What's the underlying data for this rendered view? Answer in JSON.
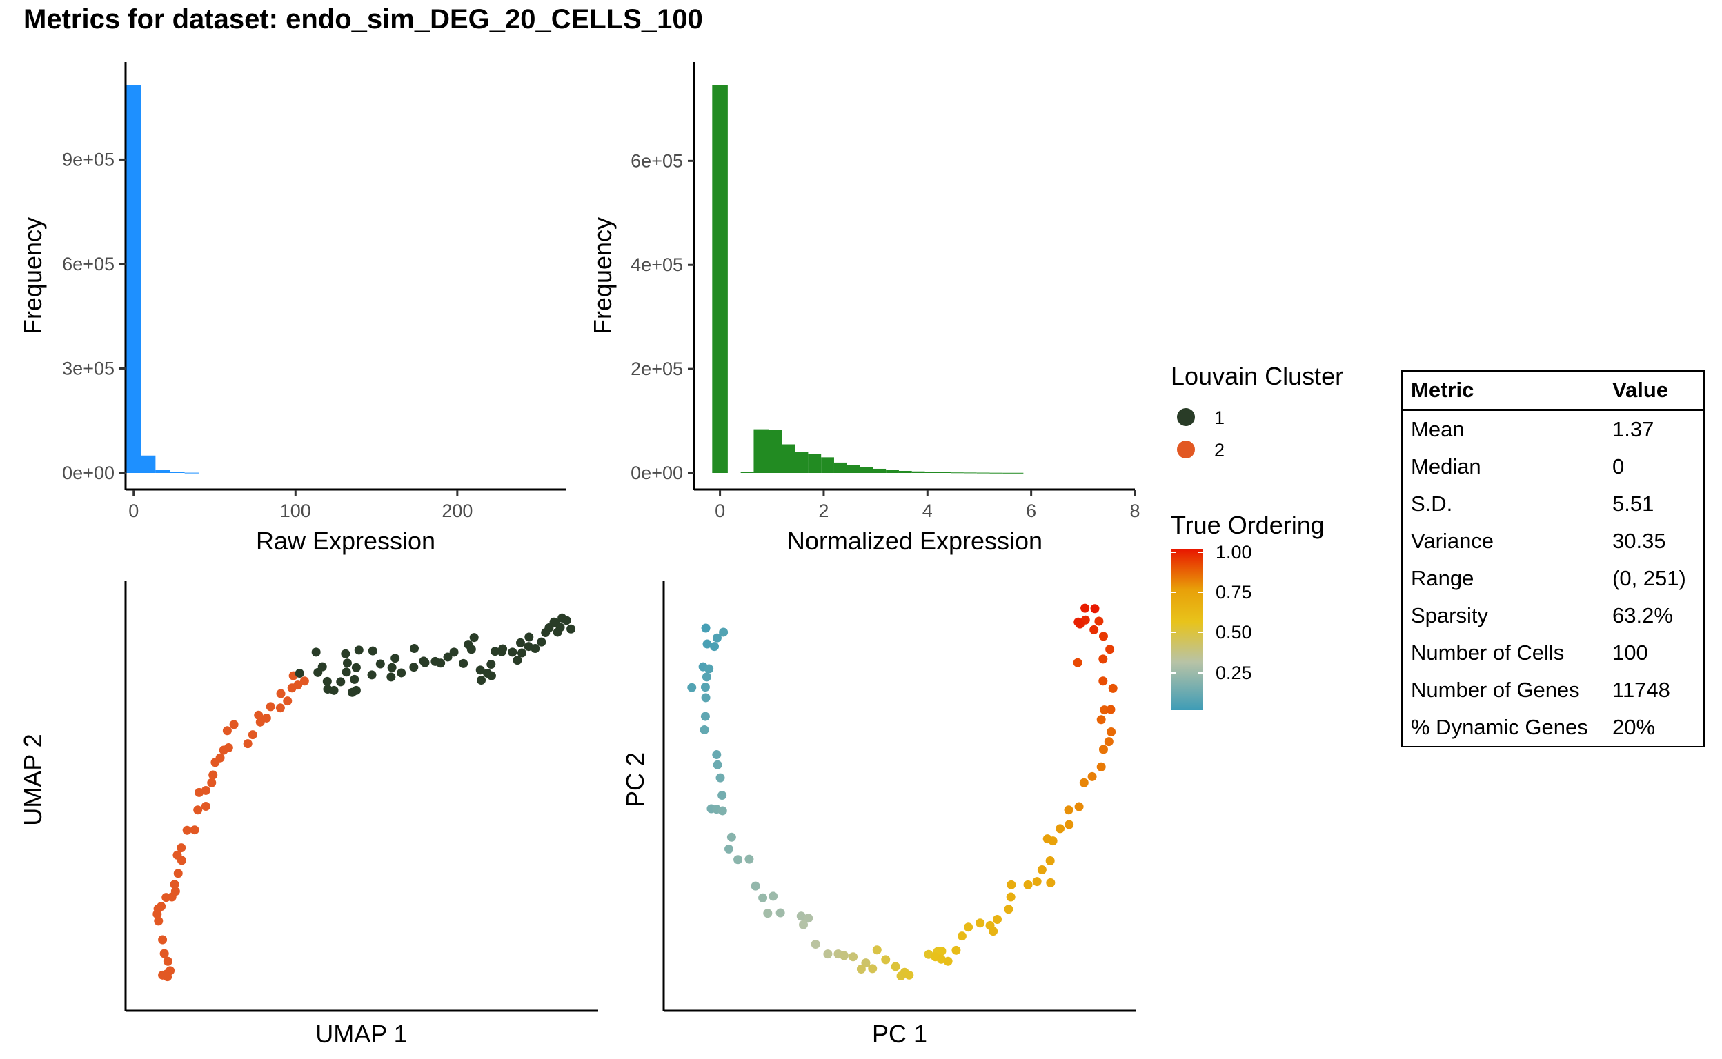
{
  "title": "Metrics for dataset: endo_sim_DEG_20_CELLS_100",
  "chart_data": [
    {
      "type": "bar",
      "name": "raw-expression-histogram",
      "color": "#1E90FF",
      "xlabel": "Raw Expression",
      "ylabel": "Frequency",
      "xticks": [
        "0",
        "100",
        "200"
      ],
      "yticks": [
        "0e+00",
        "3e+05",
        "6e+05",
        "9e+05"
      ],
      "xlim": [
        -5,
        267
      ],
      "ylim": [
        0,
        1180000
      ],
      "bins": [
        {
          "x0": -4.5,
          "x1": 4.5,
          "y": 1113000
        },
        {
          "x0": 4.5,
          "x1": 13.5,
          "y": 50000
        },
        {
          "x0": 13.5,
          "x1": 22.5,
          "y": 9000
        },
        {
          "x0": 22.5,
          "x1": 31.5,
          "y": 2500
        },
        {
          "x0": 31.5,
          "x1": 40.5,
          "y": 800
        }
      ]
    },
    {
      "type": "bar",
      "name": "normalized-expression-histogram",
      "color": "#228B22",
      "xlabel": "Normalized Expression",
      "ylabel": "Frequency",
      "xticks": [
        "0",
        "2",
        "4",
        "6",
        "8"
      ],
      "yticks": [
        "0e+00",
        "2e+05",
        "4e+05",
        "6e+05"
      ],
      "xlim": [
        -0.5,
        8
      ],
      "ylim": [
        0,
        790000
      ],
      "bins": [
        {
          "x0": -0.15,
          "x1": 0.15,
          "y": 745000
        },
        {
          "x0": 0.4,
          "x1": 0.65,
          "y": 2000
        },
        {
          "x0": 0.65,
          "x1": 0.95,
          "y": 84000
        },
        {
          "x0": 0.95,
          "x1": 1.2,
          "y": 83000
        },
        {
          "x0": 1.2,
          "x1": 1.45,
          "y": 55000
        },
        {
          "x0": 1.45,
          "x1": 1.7,
          "y": 41000
        },
        {
          "x0": 1.7,
          "x1": 1.95,
          "y": 37000
        },
        {
          "x0": 1.95,
          "x1": 2.2,
          "y": 30000
        },
        {
          "x0": 2.2,
          "x1": 2.45,
          "y": 20000
        },
        {
          "x0": 2.45,
          "x1": 2.7,
          "y": 15000
        },
        {
          "x0": 2.7,
          "x1": 2.95,
          "y": 11000
        },
        {
          "x0": 2.95,
          "x1": 3.2,
          "y": 8000
        },
        {
          "x0": 3.2,
          "x1": 3.45,
          "y": 6000
        },
        {
          "x0": 3.45,
          "x1": 3.7,
          "y": 4000
        },
        {
          "x0": 3.7,
          "x1": 3.95,
          "y": 3000
        },
        {
          "x0": 3.95,
          "x1": 4.2,
          "y": 2500
        },
        {
          "x0": 4.2,
          "x1": 4.45,
          "y": 1500
        },
        {
          "x0": 4.45,
          "x1": 4.7,
          "y": 1000
        },
        {
          "x0": 4.7,
          "x1": 4.95,
          "y": 800
        },
        {
          "x0": 4.95,
          "x1": 5.2,
          "y": 600
        },
        {
          "x0": 5.2,
          "x1": 5.45,
          "y": 400
        },
        {
          "x0": 5.45,
          "x1": 5.85,
          "y": 300
        }
      ]
    },
    {
      "type": "scatter",
      "name": "umap-scatter",
      "xlabel": "UMAP 1",
      "ylabel": "UMAP 2",
      "xlim": [
        0,
        100
      ],
      "ylim": [
        0,
        100
      ],
      "cluster_colors": {
        "1": "#293C27",
        "2": "#E25823"
      },
      "points": [
        [
          6.5,
          5.5,
          2
        ],
        [
          7.2,
          6.3,
          2
        ],
        [
          6.6,
          4.8,
          2
        ],
        [
          5.5,
          5.2,
          2
        ],
        [
          6.7,
          8.6,
          2
        ],
        [
          5.9,
          10.5,
          2
        ],
        [
          5.5,
          13.9,
          2
        ],
        [
          4.6,
          18.5,
          2
        ],
        [
          4.5,
          21.5,
          2
        ],
        [
          5.2,
          22.1,
          2
        ],
        [
          4.3,
          20.2,
          2
        ],
        [
          6.3,
          24.3,
          2
        ],
        [
          7.6,
          24.4,
          2
        ],
        [
          8.4,
          25.8,
          2
        ],
        [
          8.2,
          27.5,
          2
        ],
        [
          9.0,
          30.2,
          2
        ],
        [
          9.8,
          33.4,
          2
        ],
        [
          8.8,
          34.7,
          2
        ],
        [
          9.7,
          36.5,
          2
        ],
        [
          11.0,
          40.8,
          2
        ],
        [
          12.7,
          40.9,
          2
        ],
        [
          13.4,
          45.8,
          2
        ],
        [
          15.2,
          46.7,
          2
        ],
        [
          13.7,
          50.1,
          2
        ],
        [
          15.2,
          50.6,
          2
        ],
        [
          16.5,
          52.5,
          2
        ],
        [
          16.8,
          54.4,
          2
        ],
        [
          17.3,
          57.5,
          2
        ],
        [
          19.2,
          60.5,
          2
        ],
        [
          18.4,
          58.6,
          2
        ],
        [
          20.0,
          65.3,
          2
        ],
        [
          21.5,
          66.8,
          2
        ],
        [
          20.3,
          61.1,
          2
        ],
        [
          24.6,
          62.1,
          2
        ],
        [
          25.7,
          64.3,
          2
        ],
        [
          27.4,
          67.4,
          2
        ],
        [
          27.0,
          69.1,
          2
        ],
        [
          28.8,
          68.4,
          2
        ],
        [
          29.7,
          71.2,
          2
        ],
        [
          31.9,
          70.9,
          2
        ],
        [
          33.5,
          72.6,
          2
        ],
        [
          32.0,
          74.4,
          2
        ],
        [
          34.5,
          75.8,
          2
        ],
        [
          35.8,
          76.5,
          2
        ],
        [
          37.3,
          77.5,
          2
        ],
        [
          34.8,
          78.8,
          2
        ],
        [
          36.2,
          79.4,
          1
        ],
        [
          40.3,
          79.6,
          1
        ],
        [
          39.9,
          84.6,
          1
        ],
        [
          41.3,
          81.0,
          1
        ],
        [
          42.4,
          77.4,
          1
        ],
        [
          43.9,
          75.2,
          1
        ],
        [
          42.5,
          75.5,
          1
        ],
        [
          45.4,
          77.3,
          1
        ],
        [
          46.9,
          81.9,
          1
        ],
        [
          46.7,
          79.7,
          1
        ],
        [
          46.5,
          84.2,
          1
        ],
        [
          48.9,
          80.8,
          1
        ],
        [
          48.5,
          77.9,
          1
        ],
        [
          48.9,
          75.2,
          1
        ],
        [
          48.0,
          74.7,
          1
        ],
        [
          49.5,
          85.1,
          1
        ],
        [
          52.6,
          84.9,
          1
        ],
        [
          52.4,
          79.0,
          1
        ],
        [
          54.3,
          81.7,
          1
        ],
        [
          56.9,
          80.8,
          1
        ],
        [
          57.6,
          83.1,
          1
        ],
        [
          56.7,
          78.5,
          1
        ],
        [
          59.0,
          79.5,
          1
        ],
        [
          61.8,
          80.9,
          1
        ],
        [
          61.9,
          85.5,
          1
        ],
        [
          64.0,
          82.4,
          1
        ],
        [
          64.3,
          82.0,
          1
        ],
        [
          66.6,
          82.3,
          1
        ],
        [
          67.8,
          81.9,
          1
        ],
        [
          69.4,
          83.4,
          1
        ],
        [
          70.8,
          84.6,
          1
        ],
        [
          72.9,
          81.8,
          1
        ],
        [
          74.0,
          86.5,
          1
        ],
        [
          74.7,
          85.3,
          1
        ],
        [
          75.3,
          88.2,
          1
        ],
        [
          76.7,
          80.2,
          1
        ],
        [
          76.9,
          77.7,
          1
        ],
        [
          78.3,
          79.4,
          1
        ],
        [
          79.2,
          78.8,
          1
        ],
        [
          79.1,
          81.6,
          1
        ],
        [
          80.0,
          84.8,
          1
        ],
        [
          81.5,
          84.7,
          1
        ],
        [
          81.7,
          85.4,
          1
        ],
        [
          83.9,
          84.6,
          1
        ],
        [
          85.0,
          82.6,
          1
        ],
        [
          86.0,
          84.4,
          1
        ],
        [
          85.7,
          86.9,
          1
        ],
        [
          87.5,
          86.0,
          1
        ],
        [
          87.6,
          88.3,
          1
        ],
        [
          89.0,
          85.5,
          1
        ],
        [
          90.4,
          87.1,
          1
        ],
        [
          91.3,
          89.4,
          1
        ],
        [
          92.1,
          90.6,
          1
        ],
        [
          93.6,
          91.8,
          1
        ],
        [
          94.6,
          90.7,
          1
        ],
        [
          94.0,
          89.5,
          1
        ],
        [
          93.2,
          92.0,
          1
        ],
        [
          95.0,
          93.0,
          1
        ],
        [
          96.0,
          92.4,
          1
        ],
        [
          97.0,
          90.3,
          1
        ]
      ]
    },
    {
      "type": "scatter",
      "name": "pca-scatter",
      "xlabel": "PC 1",
      "ylabel": "PC 2",
      "xlim": [
        0,
        100
      ],
      "ylim": [
        0,
        100
      ],
      "gradient": [
        "#3E9CB6",
        "#B8C3A6",
        "#E8C31B",
        "#E8A009",
        "#E81800"
      ],
      "points": [
        [
          8.1,
          90.5,
          0.02
        ],
        [
          8.4,
          86.6,
          0.03
        ],
        [
          10.6,
          88.1,
          0.04
        ],
        [
          12.0,
          89.5,
          0.05
        ],
        [
          10.0,
          86.0,
          0.03
        ],
        [
          7.5,
          81.0,
          0.04
        ],
        [
          8.8,
          80.5,
          0.05
        ],
        [
          8.3,
          78.5,
          0.06
        ],
        [
          5.0,
          75.9,
          0.05
        ],
        [
          8.0,
          76.0,
          0.06
        ],
        [
          8.1,
          73.4,
          0.07
        ],
        [
          8.0,
          68.8,
          0.08
        ],
        [
          7.8,
          65.5,
          0.09
        ],
        [
          10.5,
          59.4,
          0.1
        ],
        [
          10.7,
          56.9,
          0.11
        ],
        [
          11.3,
          53.7,
          0.12
        ],
        [
          11.7,
          49.4,
          0.13
        ],
        [
          9.3,
          46.1,
          0.14
        ],
        [
          10.5,
          46.0,
          0.15
        ],
        [
          11.8,
          45.6,
          0.16
        ],
        [
          13.2,
          36.2,
          0.17
        ],
        [
          13.8,
          39.1,
          0.18
        ],
        [
          15.2,
          33.6,
          0.19
        ],
        [
          17.7,
          33.7,
          0.2
        ],
        [
          19.1,
          27.1,
          0.21
        ],
        [
          20.7,
          24.2,
          0.22
        ],
        [
          23.0,
          24.6,
          0.23
        ],
        [
          24.6,
          20.5,
          0.24
        ],
        [
          21.8,
          20.4,
          0.25
        ],
        [
          29.2,
          19.7,
          0.27
        ],
        [
          30.8,
          19.2,
          0.28
        ],
        [
          29.7,
          17.6,
          0.29
        ],
        [
          32.4,
          12.8,
          0.31
        ],
        [
          35.1,
          10.4,
          0.33
        ],
        [
          37.4,
          10.4,
          0.35
        ],
        [
          38.7,
          10.0,
          0.37
        ],
        [
          40.7,
          9.7,
          0.39
        ],
        [
          43.5,
          8.2,
          0.41
        ],
        [
          42.5,
          6.7,
          0.43
        ],
        [
          45.0,
          6.8,
          0.45
        ],
        [
          46.0,
          11.4,
          0.47
        ],
        [
          47.9,
          9.0,
          0.48
        ],
        [
          50.1,
          7.3,
          0.49
        ],
        [
          51.3,
          5.0,
          0.5
        ],
        [
          52.1,
          5.9,
          0.51
        ],
        [
          53.1,
          5.2,
          0.52
        ],
        [
          57.4,
          10.3,
          0.53
        ],
        [
          59.4,
          11.0,
          0.54
        ],
        [
          60.3,
          11.1,
          0.55
        ],
        [
          58.9,
          9.7,
          0.56
        ],
        [
          60.2,
          9.1,
          0.57
        ],
        [
          61.7,
          8.6,
          0.58
        ],
        [
          63.5,
          11.3,
          0.59
        ],
        [
          64.8,
          14.8,
          0.6
        ],
        [
          66.2,
          17.0,
          0.61
        ],
        [
          68.8,
          18.0,
          0.62
        ],
        [
          71.0,
          17.4,
          0.63
        ],
        [
          71.7,
          16.0,
          0.64
        ],
        [
          72.6,
          18.9,
          0.65
        ],
        [
          75.1,
          21.4,
          0.66
        ],
        [
          75.6,
          24.4,
          0.67
        ],
        [
          75.7,
          27.4,
          0.68
        ],
        [
          79.4,
          27.4,
          0.69
        ],
        [
          81.4,
          28.2,
          0.7
        ],
        [
          84.4,
          27.9,
          0.71
        ],
        [
          82.5,
          31.1,
          0.72
        ],
        [
          84.3,
          33.3,
          0.73
        ],
        [
          84.9,
          38.2,
          0.74
        ],
        [
          83.7,
          38.7,
          0.75
        ],
        [
          86.5,
          41.2,
          0.76
        ],
        [
          88.5,
          42.2,
          0.77
        ],
        [
          88.4,
          45.8,
          0.78
        ],
        [
          90.7,
          46.6,
          0.79
        ],
        [
          91.8,
          52.5,
          0.8
        ],
        [
          93.6,
          54.0,
          0.81
        ],
        [
          95.6,
          56.4,
          0.82
        ],
        [
          96.1,
          60.7,
          0.83
        ],
        [
          97.3,
          62.6,
          0.84
        ],
        [
          97.8,
          65.0,
          0.85
        ],
        [
          95.6,
          68.0,
          0.86
        ],
        [
          96.3,
          70.4,
          0.87
        ],
        [
          97.7,
          70.5,
          0.88
        ],
        [
          98.2,
          75.7,
          0.89
        ],
        [
          96.0,
          77.5,
          0.9
        ],
        [
          90.4,
          82.0,
          0.91
        ],
        [
          96.0,
          82.9,
          0.92
        ],
        [
          97.5,
          85.3,
          0.93
        ],
        [
          96.1,
          88.5,
          0.94
        ],
        [
          95.1,
          92.2,
          0.95
        ],
        [
          94.0,
          90.1,
          0.96
        ],
        [
          92.1,
          92.5,
          0.97
        ],
        [
          90.9,
          91.5,
          0.98
        ],
        [
          90.5,
          92.0,
          0.985
        ],
        [
          92.0,
          95.4,
          0.99
        ],
        [
          94.2,
          95.3,
          1.0
        ]
      ]
    }
  ],
  "legends": {
    "cluster": {
      "title": "Louvain Cluster",
      "items": [
        {
          "label": "1",
          "color": "#293C27"
        },
        {
          "label": "2",
          "color": "#E25823"
        }
      ]
    },
    "ordering": {
      "title": "True Ordering",
      "ticks": [
        "1.00",
        "0.75",
        "0.50",
        "0.25"
      ]
    }
  },
  "metrics_table": {
    "headers": [
      "Metric",
      "Value"
    ],
    "rows": [
      [
        "Mean",
        "1.37"
      ],
      [
        "Median",
        "0"
      ],
      [
        "S.D.",
        "5.51"
      ],
      [
        "Variance",
        "30.35"
      ],
      [
        "Range",
        "(0, 251)"
      ],
      [
        "Sparsity",
        "63.2%"
      ],
      [
        "Number of Cells",
        "100"
      ],
      [
        "Number of Genes",
        "11748"
      ],
      [
        "% Dynamic Genes",
        "20%"
      ]
    ]
  }
}
